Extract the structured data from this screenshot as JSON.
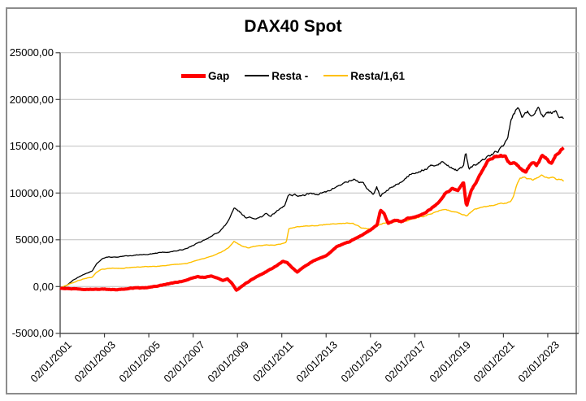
{
  "window": {
    "background_color": "#FFFFFF",
    "border_color": "#8C8C8C"
  },
  "chart_data": {
    "type": "line",
    "title": "DAX40 Spot",
    "grid": true,
    "legend_position": "top-center",
    "x_axis": {
      "tick_labels": [
        "02/01/2001",
        "02/01/2003",
        "02/01/2005",
        "02/01/2007",
        "02/01/2009",
        "02/01/2011",
        "02/01/2013",
        "02/01/2015",
        "02/01/2017",
        "02/01/2019",
        "02/01/2021",
        "02/01/2023"
      ],
      "tick_years": [
        2001,
        2003,
        2005,
        2007,
        2009,
        2011,
        2013,
        2015,
        2017,
        2019,
        2021,
        2023
      ],
      "min_year": 2001.0,
      "max_year": 2024.4
    },
    "y_axis": {
      "tick_labels": [
        "25000,00",
        "20000,00",
        "15000,00",
        "10000,00",
        "5000,00",
        "0,00",
        "-5000,00"
      ],
      "tick_values": [
        25000,
        20000,
        15000,
        10000,
        5000,
        0,
        -5000
      ],
      "min": -5000,
      "max": 25000
    },
    "series": [
      {
        "name": "Gap",
        "color": "#FF0000",
        "line_width": 4,
        "points": [
          [
            2001.0,
            -150
          ],
          [
            2001.5,
            -220
          ],
          [
            2002.0,
            -260
          ],
          [
            2002.5,
            -300
          ],
          [
            2003.0,
            -280
          ],
          [
            2003.5,
            -320
          ],
          [
            2004.0,
            -250
          ],
          [
            2004.4,
            -120
          ],
          [
            2004.8,
            -170
          ],
          [
            2005.2,
            -20
          ],
          [
            2005.6,
            160
          ],
          [
            2006.0,
            330
          ],
          [
            2006.5,
            570
          ],
          [
            2006.9,
            830
          ],
          [
            2007.2,
            1070
          ],
          [
            2007.5,
            960
          ],
          [
            2007.8,
            1120
          ],
          [
            2008.1,
            900
          ],
          [
            2008.35,
            630
          ],
          [
            2008.55,
            830
          ],
          [
            2008.75,
            350
          ],
          [
            2008.95,
            -420
          ],
          [
            2009.1,
            -150
          ],
          [
            2009.3,
            200
          ],
          [
            2009.6,
            700
          ],
          [
            2010.0,
            1200
          ],
          [
            2010.4,
            1700
          ],
          [
            2010.8,
            2300
          ],
          [
            2011.05,
            2700
          ],
          [
            2011.25,
            2550
          ],
          [
            2011.5,
            1950
          ],
          [
            2011.7,
            1550
          ],
          [
            2012.0,
            2100
          ],
          [
            2012.4,
            2700
          ],
          [
            2013.0,
            3300
          ],
          [
            2013.5,
            4300
          ],
          [
            2014.0,
            4720
          ],
          [
            2014.5,
            5350
          ],
          [
            2015.0,
            6050
          ],
          [
            2015.3,
            6550
          ],
          [
            2015.45,
            8150
          ],
          [
            2015.6,
            7850
          ],
          [
            2015.8,
            6700
          ],
          [
            2016.1,
            7120
          ],
          [
            2016.4,
            6900
          ],
          [
            2016.7,
            7300
          ],
          [
            2017.0,
            7420
          ],
          [
            2017.5,
            7900
          ],
          [
            2018.0,
            8800
          ],
          [
            2018.35,
            9900
          ],
          [
            2018.7,
            10500
          ],
          [
            2018.95,
            10280
          ],
          [
            2019.2,
            11100
          ],
          [
            2019.33,
            8600
          ],
          [
            2019.55,
            10300
          ],
          [
            2019.8,
            11300
          ],
          [
            2020.0,
            12200
          ],
          [
            2020.3,
            13400
          ],
          [
            2020.6,
            13850
          ],
          [
            2020.9,
            14050
          ],
          [
            2021.1,
            13850
          ],
          [
            2021.3,
            13100
          ],
          [
            2021.55,
            13150
          ],
          [
            2021.75,
            12700
          ],
          [
            2022.0,
            12280
          ],
          [
            2022.3,
            13350
          ],
          [
            2022.5,
            12950
          ],
          [
            2022.75,
            14000
          ],
          [
            2023.0,
            13550
          ],
          [
            2023.15,
            13080
          ],
          [
            2023.35,
            14000
          ],
          [
            2023.55,
            14500
          ],
          [
            2023.72,
            14850
          ]
        ]
      },
      {
        "name": "Resta -",
        "color": "#000000",
        "line_width": 1.3,
        "points": [
          [
            2001.0,
            -280
          ],
          [
            2001.3,
            150
          ],
          [
            2001.6,
            700
          ],
          [
            2001.9,
            1120
          ],
          [
            2002.2,
            1420
          ],
          [
            2002.45,
            1650
          ],
          [
            2002.65,
            2450
          ],
          [
            2002.9,
            3000
          ],
          [
            2003.2,
            3160
          ],
          [
            2003.6,
            3120
          ],
          [
            2004.0,
            3260
          ],
          [
            2004.5,
            3400
          ],
          [
            2005.0,
            3460
          ],
          [
            2005.5,
            3620
          ],
          [
            2006.0,
            3720
          ],
          [
            2006.5,
            3920
          ],
          [
            2007.0,
            4420
          ],
          [
            2007.4,
            4820
          ],
          [
            2007.8,
            5320
          ],
          [
            2008.2,
            5950
          ],
          [
            2008.5,
            6650
          ],
          [
            2008.85,
            8300
          ],
          [
            2009.05,
            8050
          ],
          [
            2009.35,
            7450
          ],
          [
            2009.7,
            7300
          ],
          [
            2010.0,
            7400
          ],
          [
            2010.3,
            7740
          ],
          [
            2010.5,
            7520
          ],
          [
            2010.9,
            8320
          ],
          [
            2011.15,
            8750
          ],
          [
            2011.28,
            9770
          ],
          [
            2011.6,
            9850
          ],
          [
            2011.85,
            9600
          ],
          [
            2012.1,
            9850
          ],
          [
            2012.6,
            9950
          ],
          [
            2013.0,
            10060
          ],
          [
            2013.5,
            10720
          ],
          [
            2014.0,
            11260
          ],
          [
            2014.3,
            11480
          ],
          [
            2014.7,
            10920
          ],
          [
            2015.0,
            10080
          ],
          [
            2015.12,
            9800
          ],
          [
            2015.28,
            10620
          ],
          [
            2015.45,
            9680
          ],
          [
            2015.7,
            10150
          ],
          [
            2016.0,
            10660
          ],
          [
            2016.4,
            11220
          ],
          [
            2016.9,
            12220
          ],
          [
            2017.3,
            12420
          ],
          [
            2017.8,
            12880
          ],
          [
            2018.2,
            13320
          ],
          [
            2018.6,
            12850
          ],
          [
            2018.95,
            12420
          ],
          [
            2019.2,
            12950
          ],
          [
            2019.3,
            14300
          ],
          [
            2019.45,
            12480
          ],
          [
            2019.7,
            12950
          ],
          [
            2020.0,
            13420
          ],
          [
            2020.4,
            13950
          ],
          [
            2020.8,
            14650
          ],
          [
            2021.05,
            15200
          ],
          [
            2021.2,
            16050
          ],
          [
            2021.35,
            17850
          ],
          [
            2021.5,
            18550
          ],
          [
            2021.65,
            19150
          ],
          [
            2021.85,
            18150
          ],
          [
            2022.1,
            18600
          ],
          [
            2022.3,
            18250
          ],
          [
            2022.55,
            19180
          ],
          [
            2022.8,
            18350
          ],
          [
            2023.0,
            18750
          ],
          [
            2023.2,
            18600
          ],
          [
            2023.35,
            18950
          ],
          [
            2023.5,
            18400
          ],
          [
            2023.72,
            17950
          ]
        ]
      },
      {
        "name": "Resta/1,61",
        "color": "#FFC000",
        "line_width": 1.4,
        "points": [
          [
            2001.0,
            -170
          ],
          [
            2001.4,
            250
          ],
          [
            2001.8,
            620
          ],
          [
            2002.1,
            850
          ],
          [
            2002.45,
            1020
          ],
          [
            2002.65,
            1520
          ],
          [
            2002.9,
            1860
          ],
          [
            2003.3,
            1960
          ],
          [
            2003.7,
            1940
          ],
          [
            2004.2,
            2030
          ],
          [
            2004.7,
            2110
          ],
          [
            2005.2,
            2160
          ],
          [
            2005.7,
            2250
          ],
          [
            2006.2,
            2330
          ],
          [
            2006.7,
            2450
          ],
          [
            2007.1,
            2750
          ],
          [
            2007.5,
            3000
          ],
          [
            2007.9,
            3320
          ],
          [
            2008.3,
            3720
          ],
          [
            2008.6,
            4150
          ],
          [
            2008.85,
            4850
          ],
          [
            2009.2,
            4300
          ],
          [
            2009.5,
            4150
          ],
          [
            2009.8,
            4300
          ],
          [
            2010.3,
            4450
          ],
          [
            2010.7,
            4400
          ],
          [
            2011.0,
            4600
          ],
          [
            2011.2,
            4700
          ],
          [
            2011.32,
            6150
          ],
          [
            2011.7,
            6440
          ],
          [
            2012.2,
            6500
          ],
          [
            2012.7,
            6580
          ],
          [
            2013.2,
            6680
          ],
          [
            2013.7,
            6750
          ],
          [
            2014.2,
            6750
          ],
          [
            2014.6,
            6300
          ],
          [
            2015.1,
            6150
          ],
          [
            2015.4,
            6550
          ],
          [
            2015.7,
            6850
          ],
          [
            2016.1,
            6900
          ],
          [
            2016.6,
            7000
          ],
          [
            2017.0,
            7300
          ],
          [
            2017.4,
            7500
          ],
          [
            2017.8,
            7820
          ],
          [
            2018.2,
            8230
          ],
          [
            2018.6,
            8100
          ],
          [
            2018.95,
            7880
          ],
          [
            2019.33,
            7600
          ],
          [
            2019.7,
            8260
          ],
          [
            2020.0,
            8380
          ],
          [
            2020.4,
            8620
          ],
          [
            2020.8,
            8820
          ],
          [
            2021.1,
            8980
          ],
          [
            2021.3,
            9120
          ],
          [
            2021.45,
            9600
          ],
          [
            2021.6,
            10900
          ],
          [
            2021.75,
            11550
          ],
          [
            2021.95,
            11700
          ],
          [
            2022.15,
            11500
          ],
          [
            2022.35,
            11350
          ],
          [
            2022.55,
            11650
          ],
          [
            2022.75,
            11900
          ],
          [
            2023.0,
            11620
          ],
          [
            2023.2,
            11720
          ],
          [
            2023.4,
            11500
          ],
          [
            2023.6,
            11550
          ],
          [
            2023.72,
            11250
          ]
        ]
      }
    ],
    "style": {
      "gridline_color": "#BFBFBF",
      "axis_color": "#404040",
      "plot_border_color": "#BFBFBF"
    }
  }
}
